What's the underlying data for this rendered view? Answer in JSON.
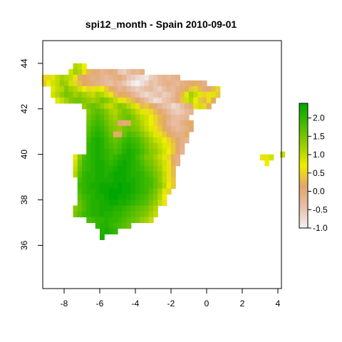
{
  "title": "spi12_month - Spain 2010-09-01",
  "colors": {
    "scale": [
      "#f2f2f2",
      "#e8c0a8",
      "#e2a66c",
      "#eeee00",
      "#99cc00",
      "#44bb00",
      "#00a600"
    ]
  },
  "chart_data": {
    "type": "heatmap",
    "title": "spi12_month - Spain 2010-09-01",
    "xlabel": "",
    "ylabel": "",
    "xlim": [
      -9.2,
      4.2
    ],
    "ylim": [
      34.1,
      45.0
    ],
    "x_ticks": [
      "-8",
      "-6",
      "-4",
      "-2",
      "0",
      "2",
      "4"
    ],
    "y_ticks": [
      "36",
      "38",
      "40",
      "42",
      "44"
    ],
    "legend": {
      "placement": "right",
      "range": [
        -1.0,
        2.4
      ],
      "ticks": [
        "2.0",
        "1.5",
        "1.0",
        "0.5",
        "0.0",
        "-0.5",
        "-1.0"
      ]
    },
    "grid": false,
    "cell_size_degrees": 0.25,
    "rows_origin": {
      "lon_west": -9.25,
      "lat_north": 43.75
    },
    "rows": [
      {
        "lat": 43.75,
        "lon0": -7.5,
        "values": [
          1.1,
          1.0,
          0.7
        ]
      },
      {
        "lat": 43.5,
        "lon0": -7.75,
        "values": [
          0.9,
          1.2,
          1.1,
          0.6,
          0.3,
          0.0,
          0.0,
          -0.2,
          -0.1,
          0.0,
          -0.1,
          -0.5,
          -0.6,
          -0.4,
          -0.2,
          -0.3,
          -0.1
        ]
      },
      {
        "lat": 43.25,
        "lon0": -9.25,
        "values": [
          0.5,
          0.5,
          0.8,
          1.0,
          1.2,
          1.1,
          1.0,
          0.6,
          0.2,
          0.1,
          0.0,
          -0.1,
          0.0,
          -0.2,
          -0.3,
          -0.2,
          -0.1,
          0.0,
          -0.2,
          -0.5,
          -0.6,
          -0.7,
          -0.8,
          -0.9,
          -0.6,
          -0.5,
          -0.3,
          -0.2,
          -0.3,
          -0.2,
          -0.1
        ]
      },
      {
        "lat": 43.0,
        "lon0": -9.25,
        "values": [
          0.4,
          0.7,
          0.9,
          1.0,
          1.3,
          1.2,
          0.9,
          0.5,
          0.3,
          0.1,
          0.2,
          0.0,
          -0.1,
          -0.2,
          -0.3,
          -0.4,
          -0.2,
          -0.3,
          -0.5,
          -0.7,
          -0.9,
          -1.0,
          -0.8,
          -0.6,
          -0.4,
          -0.5,
          -0.3,
          -0.2,
          -0.1,
          -0.2,
          -0.3,
          -0.1,
          0.0,
          0.1,
          0.2,
          0.0,
          -0.1
        ]
      },
      {
        "lat": 42.75,
        "lon0": -8.75,
        "values": [
          0.8,
          1.0,
          1.1,
          1.4,
          1.2,
          1.1,
          0.9,
          0.7,
          0.5,
          0.6,
          0.8,
          0.7,
          0.4,
          0.2,
          0.0,
          -0.2,
          -0.1,
          -0.3,
          -0.5,
          -0.6,
          -0.5,
          -0.4,
          -0.3,
          -0.5,
          -0.6,
          -0.4,
          -0.2,
          -0.3,
          -0.1,
          0.0,
          0.2,
          0.4,
          0.5,
          0.3,
          0.0,
          0.1,
          0.3,
          0.5
        ]
      },
      {
        "lat": 42.5,
        "lon0": -8.75,
        "values": [
          0.9,
          1.1,
          1.3,
          1.5,
          1.4,
          1.2,
          1.3,
          1.2,
          1.1,
          1.0,
          1.2,
          1.1,
          0.9,
          0.6,
          0.3,
          0.1,
          0.2,
          0.0,
          -0.2,
          -0.4,
          -0.6,
          -0.7,
          -0.6,
          -0.5,
          -0.4,
          -0.6,
          -0.5,
          -0.3,
          0.0,
          0.3,
          0.8,
          1.2,
          1.0,
          0.8,
          0.5,
          0.6,
          0.8,
          0.4
        ]
      },
      {
        "lat": 42.25,
        "lon0": -8.5,
        "values": [
          0.8,
          1.0,
          1.2,
          1.4,
          1.5,
          1.5,
          1.4,
          1.3,
          1.2,
          1.3,
          1.5,
          1.4,
          1.2,
          1.0,
          0.8,
          0.6,
          0.4,
          0.3,
          0.1,
          -0.1,
          -0.4,
          -0.6,
          -0.8,
          -0.7,
          -0.5,
          -0.4,
          -0.2,
          0.0,
          0.4,
          0.9,
          1.1,
          0.7,
          0.4,
          0.3,
          0.6,
          0.2
        ]
      },
      {
        "lat": 42.0,
        "lon0": -7.0,
        "values": [
          1.3,
          1.5,
          1.6,
          1.5,
          1.3,
          1.1,
          1.0,
          1.2,
          1.4,
          1.3,
          1.1,
          0.9,
          0.6,
          0.3,
          0.4,
          0.2,
          0.0,
          -0.2,
          -0.4,
          -0.5,
          -0.7,
          -0.6,
          -0.4,
          -0.1,
          0.0,
          0.6,
          0.9,
          0.5,
          0.2
        ]
      },
      {
        "lat": 41.75,
        "lon0": -6.75,
        "values": [
          1.4,
          1.6,
          1.7,
          1.6,
          1.4,
          1.2,
          1.1,
          1.3,
          1.5,
          1.4,
          1.2,
          1.0,
          0.8,
          0.6,
          0.5,
          0.3,
          0.1,
          -0.1,
          -0.3,
          -0.5,
          -0.6,
          -0.5,
          -0.3,
          -0.2
        ]
      },
      {
        "lat": 41.5,
        "lon0": -6.75,
        "values": [
          1.5,
          1.7,
          1.8,
          1.7,
          1.5,
          1.3,
          1.2,
          1.4,
          1.5,
          1.6,
          1.4,
          1.2,
          1.0,
          0.9,
          0.7,
          0.5,
          0.3,
          0.2,
          -0.1,
          -0.3,
          -0.4,
          -0.3,
          -0.2
        ]
      },
      {
        "lat": 41.25,
        "lon0": -6.75,
        "values": [
          1.6,
          1.8,
          1.9,
          1.8,
          1.6,
          1.4,
          1.3,
          0.1,
          0.0,
          0.2,
          1.4,
          1.3,
          1.1,
          0.9,
          0.7,
          0.5,
          0.3,
          0.1,
          -0.2,
          -0.4,
          -0.3,
          -0.1,
          0.0,
          0.2
        ]
      },
      {
        "lat": 41.0,
        "lon0": -6.75,
        "values": [
          1.7,
          1.9,
          2.0,
          1.9,
          1.7,
          1.5,
          1.4,
          1.3,
          1.5,
          1.6,
          1.5,
          1.4,
          1.2,
          1.0,
          0.8,
          0.6,
          0.4,
          0.2,
          0.0,
          -0.2,
          -0.3,
          -0.2,
          -0.1,
          0.1
        ]
      },
      {
        "lat": 40.75,
        "lon0": -6.75,
        "values": [
          1.8,
          2.0,
          2.1,
          2.0,
          1.8,
          1.6,
          0.2,
          0.1,
          1.6,
          1.8,
          1.7,
          1.6,
          1.4,
          1.2,
          1.0,
          0.8,
          0.6,
          0.4,
          0.2,
          0.0,
          -0.1,
          -0.1,
          0.2
        ]
      },
      {
        "lat": 40.5,
        "lon0": -6.75,
        "values": [
          1.9,
          2.1,
          2.2,
          2.1,
          1.9,
          1.7,
          1.6,
          1.7,
          1.9,
          2.0,
          1.9,
          1.8,
          1.6,
          1.4,
          1.2,
          1.0,
          0.9,
          0.7,
          0.5,
          0.3,
          0.1,
          -0.1,
          -0.2
        ]
      },
      {
        "lat": 40.25,
        "lon0": -6.75,
        "values": [
          2.0,
          2.1,
          2.2,
          2.1,
          1.9,
          1.8,
          1.7,
          1.8,
          2.0,
          2.1,
          2.0,
          1.9,
          1.7,
          1.5,
          1.3,
          1.2,
          1.0,
          0.8,
          0.6,
          0.4,
          0.1,
          -0.1
        ]
      },
      {
        "lat": 40.0,
        "lon0": -6.75,
        "values": [
          2.0,
          2.1,
          2.2,
          2.1,
          2.0,
          1.9,
          1.8,
          1.9,
          2.1,
          2.2,
          2.1,
          2.0,
          1.8,
          1.6,
          1.4,
          1.3,
          1.1,
          0.9,
          0.7,
          0.4,
          0.1,
          -0.2
        ]
      },
      {
        "lat": 39.75,
        "lon0": -7.5,
        "values": [
          0.8,
          1.4,
          1.8,
          2.0,
          2.1,
          2.2,
          2.1,
          2.0,
          1.9,
          2.0,
          2.1,
          2.2,
          2.2,
          2.1,
          1.9,
          1.7,
          1.5,
          1.4,
          1.2,
          1.0,
          0.8,
          0.5,
          0.2,
          -0.1
        ]
      },
      {
        "lat": 39.5,
        "lon0": -7.5,
        "values": [
          0.9,
          1.5,
          1.9,
          2.0,
          2.1,
          2.2,
          2.2,
          2.1,
          2.0,
          2.1,
          2.2,
          2.3,
          2.2,
          2.1,
          2.0,
          1.8,
          1.6,
          1.5,
          1.3,
          1.1,
          0.9,
          0.6,
          0.2,
          -0.1
        ]
      },
      {
        "lat": 39.25,
        "lon0": -7.5,
        "values": [
          1.0,
          1.6,
          1.9,
          2.0,
          2.1,
          2.2,
          2.2,
          2.1,
          2.1,
          2.2,
          2.3,
          2.3,
          2.2,
          2.1,
          2.0,
          1.9,
          1.7,
          1.6,
          1.4,
          1.2,
          0.9,
          0.6,
          0.3
        ]
      },
      {
        "lat": 39.0,
        "lon0": -7.5,
        "values": [
          1.1,
          1.7,
          2.0,
          2.1,
          2.1,
          2.2,
          2.2,
          2.1,
          2.2,
          2.3,
          2.3,
          2.3,
          2.2,
          2.1,
          2.1,
          2.0,
          1.8,
          1.7,
          1.5,
          1.3,
          1.0,
          0.6,
          0.3
        ]
      },
      {
        "lat": 38.75,
        "lon0": -7.25,
        "values": [
          1.8,
          2.0,
          2.1,
          2.1,
          2.2,
          2.2,
          2.2,
          2.2,
          2.3,
          2.3,
          2.3,
          2.2,
          2.2,
          2.1,
          2.0,
          1.9,
          1.8,
          1.6,
          1.3,
          1.0,
          0.6,
          0.4
        ]
      },
      {
        "lat": 38.5,
        "lon0": -7.25,
        "values": [
          1.9,
          2.0,
          2.1,
          2.2,
          2.2,
          2.3,
          2.3,
          2.3,
          2.3,
          2.4,
          2.3,
          2.3,
          2.2,
          2.1,
          2.0,
          1.9,
          1.8,
          1.6,
          1.4,
          1.1,
          0.7,
          0.4
        ]
      },
      {
        "lat": 38.25,
        "lon0": -7.25,
        "values": [
          1.8,
          2.0,
          2.1,
          2.1,
          2.2,
          2.3,
          2.3,
          2.4,
          2.4,
          2.4,
          2.3,
          2.3,
          2.2,
          2.1,
          2.0,
          1.9,
          1.7,
          1.5,
          1.2,
          0.8,
          0.5
        ]
      },
      {
        "lat": 38.0,
        "lon0": -7.25,
        "values": [
          1.7,
          1.9,
          2.0,
          2.1,
          2.2,
          2.2,
          2.3,
          2.4,
          2.4,
          2.3,
          2.3,
          2.2,
          2.1,
          2.0,
          1.9,
          1.8,
          1.6,
          1.4,
          1.1,
          0.7
        ]
      },
      {
        "lat": 37.75,
        "lon0": -7.25,
        "values": [
          1.6,
          1.8,
          2.0,
          2.1,
          2.1,
          2.2,
          2.2,
          2.3,
          2.3,
          2.2,
          2.2,
          2.1,
          2.0,
          1.9,
          1.8,
          1.7,
          1.5,
          1.3,
          1.0,
          0.6
        ]
      },
      {
        "lat": 37.5,
        "lon0": -7.5,
        "values": [
          1.4,
          1.6,
          1.8,
          2.0,
          2.1,
          2.1,
          2.2,
          2.2,
          2.2,
          2.1,
          2.1,
          2.0,
          1.9,
          1.8,
          1.7,
          1.6,
          1.5,
          1.3,
          1.1
        ]
      },
      {
        "lat": 37.25,
        "lon0": -7.5,
        "values": [
          1.5,
          1.7,
          1.9,
          2.0,
          2.1,
          2.1,
          2.2,
          2.1,
          2.1,
          2.0,
          2.0,
          1.9,
          1.8,
          1.7,
          1.6,
          1.5,
          1.4,
          1.2,
          1.0
        ]
      },
      {
        "lat": 37.0,
        "lon0": -6.75,
        "values": [
          1.8,
          1.9,
          2.0,
          2.0,
          2.1,
          2.0,
          2.0,
          1.9,
          1.8,
          1.7,
          1.6,
          1.5,
          1.3,
          1.2,
          1.0
        ]
      },
      {
        "lat": 36.75,
        "lon0": -6.25,
        "values": [
          2.0,
          2.1,
          2.1,
          2.0,
          1.9,
          1.8,
          1.7,
          1.6
        ]
      },
      {
        "lat": 36.5,
        "lon0": -6.0,
        "values": [
          2.1,
          2.2,
          2.1,
          2.0
        ]
      },
      {
        "lat": 36.25,
        "lon0": -6.0,
        "values": [
          2.2
        ]
      },
      {
        "lat": 39.75,
        "lon0": 3.0,
        "values": [
          0.6,
          0.8,
          0.9
        ]
      },
      {
        "lat": 39.5,
        "lon0": 3.25,
        "values": [
          0.7
        ]
      },
      {
        "lat": 39.875,
        "lon0": 4.125,
        "values": [
          1.0
        ]
      }
    ]
  }
}
